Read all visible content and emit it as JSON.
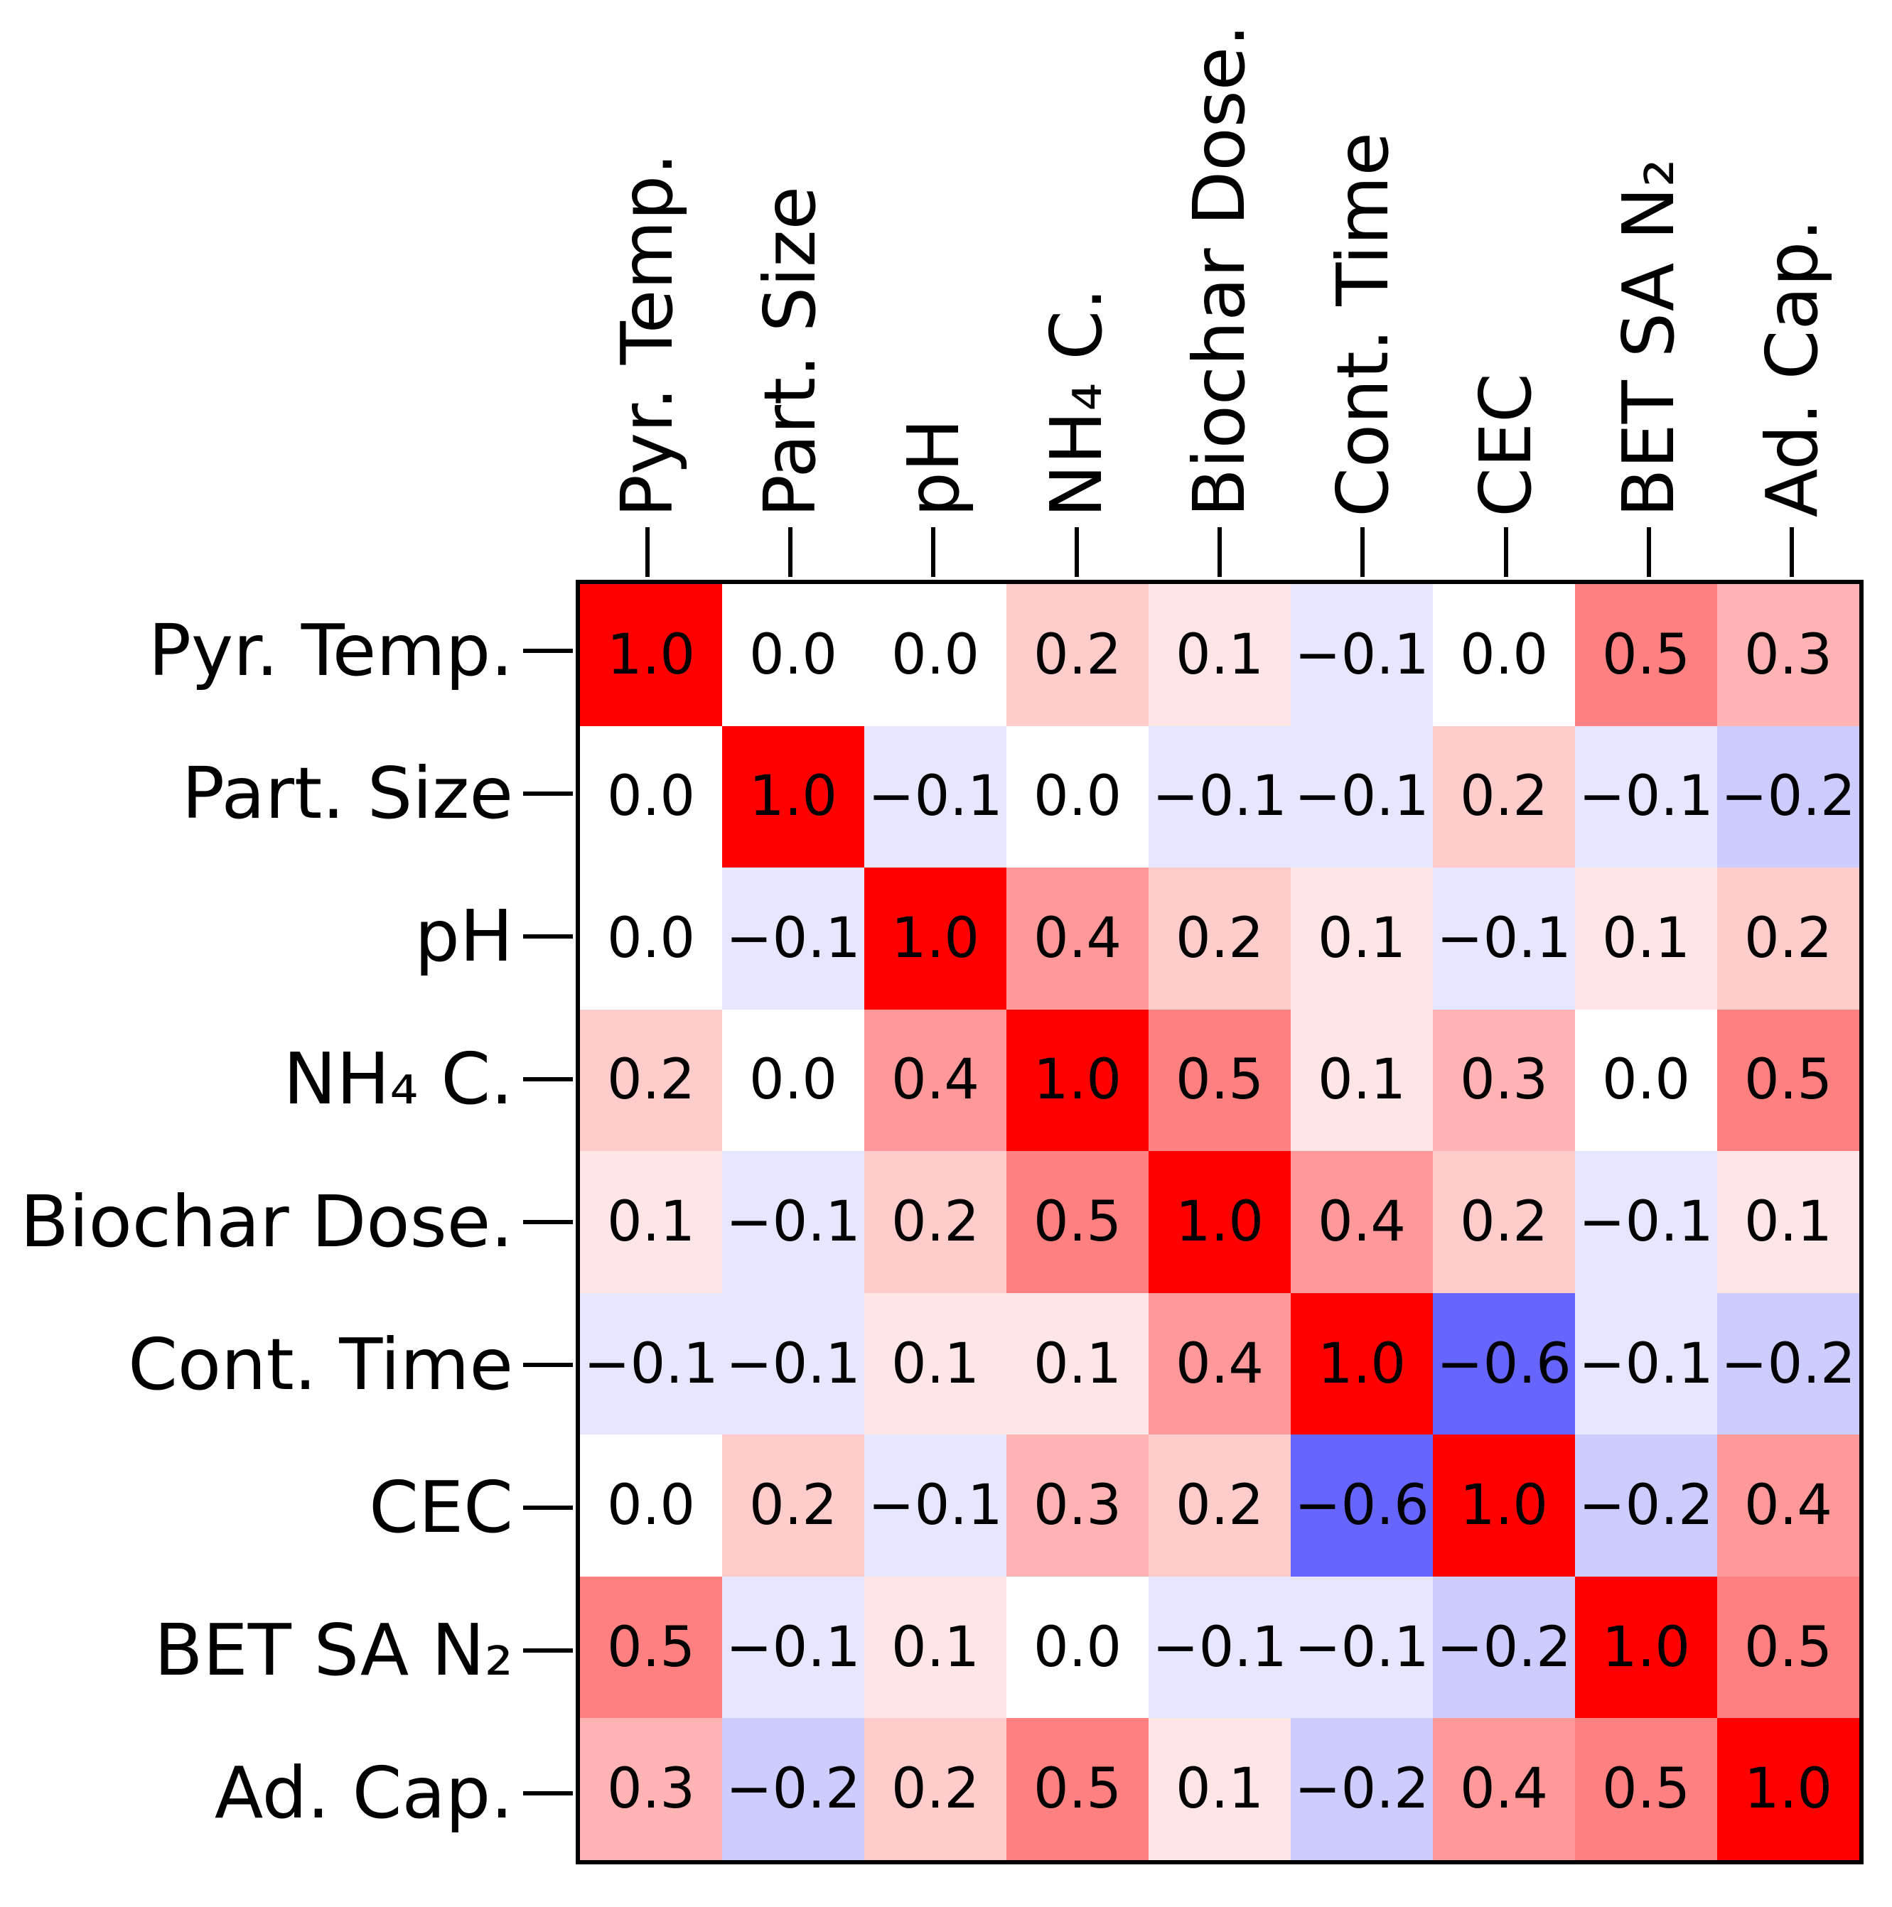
{
  "figure": {
    "background_color": "#ffffff",
    "border_color": "#000000",
    "text_color": "#000000"
  },
  "chart_data": {
    "type": "heatmap",
    "title": "",
    "xlabel": "",
    "ylabel": "",
    "legend": "none",
    "grid": false,
    "colormap": "bwr",
    "vmin": -1,
    "vmax": 1,
    "annotations": true,
    "value_decimals": 1,
    "categories": [
      "Pyr. Temp.",
      "Part. Size",
      "pH",
      "NH₄ C.",
      "Biochar Dose.",
      "Cont. Time",
      "CEC",
      "BET SA N₂",
      "Ad. Cap."
    ],
    "matrix": [
      [
        1.0,
        0.0,
        0.0,
        0.2,
        0.1,
        -0.1,
        0.0,
        0.5,
        0.3
      ],
      [
        0.0,
        1.0,
        -0.1,
        0.0,
        -0.1,
        -0.1,
        0.2,
        -0.1,
        -0.2
      ],
      [
        0.0,
        -0.1,
        1.0,
        0.4,
        0.2,
        0.1,
        -0.1,
        0.1,
        0.2
      ],
      [
        0.2,
        0.0,
        0.4,
        1.0,
        0.5,
        0.1,
        0.3,
        0.0,
        0.5
      ],
      [
        0.1,
        -0.1,
        0.2,
        0.5,
        1.0,
        0.4,
        0.2,
        -0.1,
        0.1
      ],
      [
        -0.1,
        -0.1,
        0.1,
        0.1,
        0.4,
        1.0,
        -0.6,
        -0.1,
        -0.2
      ],
      [
        0.0,
        0.2,
        -0.1,
        0.3,
        0.2,
        -0.6,
        1.0,
        -0.2,
        0.4
      ],
      [
        0.5,
        -0.1,
        0.1,
        0.0,
        -0.1,
        -0.1,
        -0.2,
        1.0,
        0.5
      ],
      [
        0.3,
        -0.2,
        0.2,
        0.5,
        0.1,
        -0.2,
        0.4,
        0.5,
        1.0
      ]
    ]
  }
}
